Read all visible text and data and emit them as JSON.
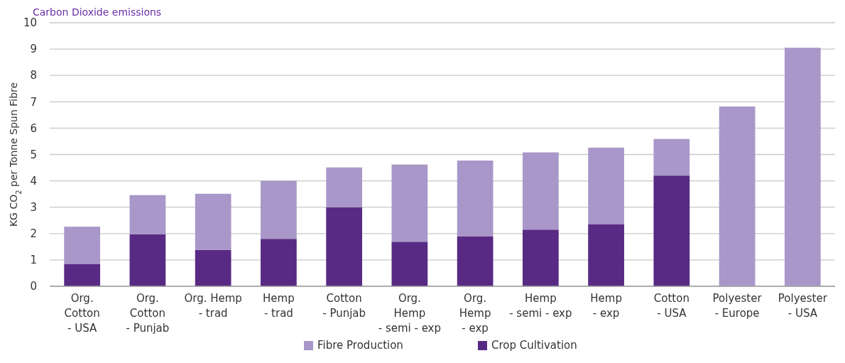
{
  "chart_data": {
    "type": "bar",
    "title": "Carbon Dioxide emissions",
    "ylabel": "KG CO$_{2}$ per Tonne Spun Fibre",
    "categories": [
      "Org.\nCotton\n- USA",
      "Org.\nCotton\n- Punjab",
      "Org. Hemp\n- trad",
      "Hemp\n- trad",
      "Cotton\n- Punjab",
      "Org.\nHemp\n- semi - exp",
      "Org.\nHemp\n- exp",
      "Hemp\n- semi - exp",
      "Hemp\n- exp",
      "Cotton\n- USA",
      "Polyester\n- Europe",
      "Polyester\n- USA"
    ],
    "series": [
      {
        "name": "Crop Cultivation",
        "color": "#582a84",
        "values": [
          0.85,
          1.97,
          1.38,
          1.8,
          3.0,
          1.69,
          1.9,
          2.15,
          2.36,
          4.2,
          0,
          0
        ]
      },
      {
        "name": "Fibre Production",
        "color": "#a897c8",
        "values": [
          1.41,
          1.49,
          2.13,
          2.2,
          1.51,
          2.93,
          2.87,
          2.93,
          2.9,
          1.39,
          6.82,
          9.05
        ]
      }
    ],
    "stacked": true,
    "ylim": [
      0,
      10
    ],
    "yticks": [
      0,
      1,
      2,
      3,
      4,
      5,
      6,
      7,
      8,
      9,
      10
    ],
    "grid": "y",
    "legend": "bottom"
  }
}
